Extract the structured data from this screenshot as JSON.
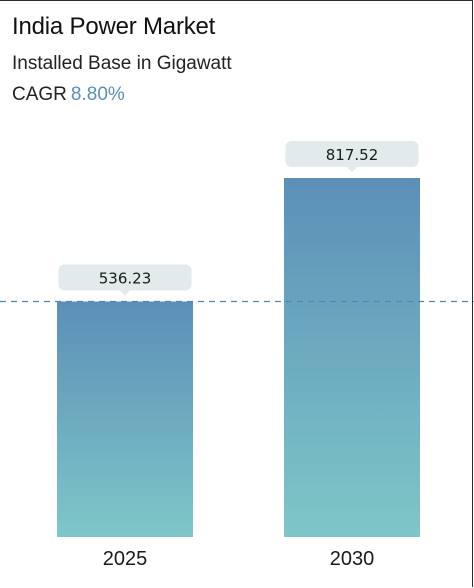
{
  "header": {
    "title": "India Power Market",
    "subtitle": "Installed Base in Gigawatt",
    "cagr_label": "CAGR",
    "cagr_value": "8.80%"
  },
  "colors": {
    "bar_top": "#5c8fb8",
    "bar_bottom": "#7ec7c8",
    "label_bg": "#e2eaec",
    "dashed_line": "#4f86b5"
  },
  "chart_data": {
    "type": "bar",
    "categories": [
      "2025",
      "2030"
    ],
    "values": [
      536.23,
      817.52
    ],
    "value_labels": [
      "536.23",
      "817.52"
    ],
    "reference_line": 536.23,
    "ylim": [
      0,
      817.52
    ]
  }
}
